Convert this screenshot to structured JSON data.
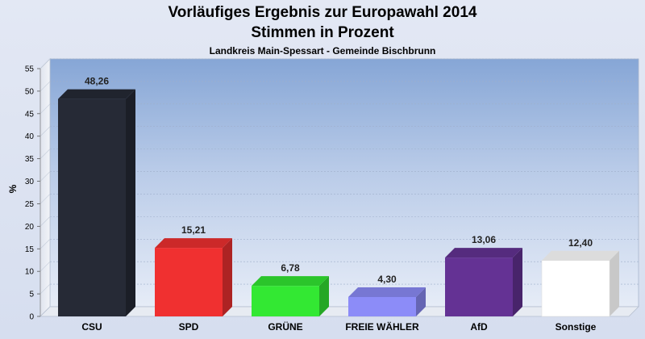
{
  "chart_data": {
    "type": "bar",
    "title_line1": "Vorläufiges Ergebnis zur Europawahl 2014",
    "title_line2": "Stimmen in Prozent",
    "subtitle": "Landkreis Main-Spessart - Gemeinde Bischbrunn",
    "ylabel": "%",
    "xlabel": "",
    "ylim": [
      0,
      55
    ],
    "yticks": [
      0,
      5,
      10,
      15,
      20,
      25,
      30,
      35,
      40,
      45,
      50,
      55
    ],
    "categories": [
      "CSU",
      "SPD",
      "GRÜNE",
      "FREIE WÄHLER",
      "AfD",
      "Sonstige"
    ],
    "values": [
      48.26,
      15.21,
      6.78,
      4.3,
      13.06,
      12.4
    ],
    "value_labels": [
      "48,26",
      "15,21",
      "6,78",
      "4,30",
      "13,06",
      "12,40"
    ],
    "colors": [
      "#262a36",
      "#f03030",
      "#33e833",
      "#8c8cf8",
      "#643294",
      "#ffffff"
    ],
    "grid": true,
    "legend": "none"
  }
}
